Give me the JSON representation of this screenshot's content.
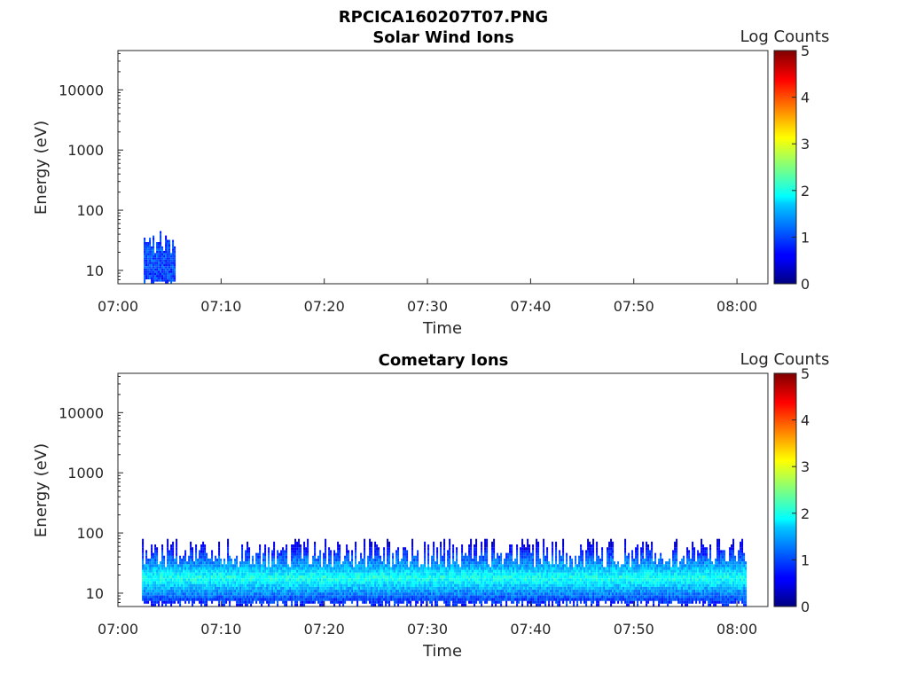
{
  "figure_title": "RPCICA160207T07.PNG",
  "chart_data": [
    {
      "type": "heatmap",
      "title": "Solar Wind Ions",
      "xlabel": "Time",
      "ylabel": "Energy (eV)",
      "xticks": [
        "07:00",
        "07:10",
        "07:20",
        "07:30",
        "07:40",
        "07:50",
        "08:00"
      ],
      "xlim_minutes": [
        0,
        63
      ],
      "yscale": "log",
      "ylim": [
        6,
        45000
      ],
      "yticks": [
        "10",
        "100",
        "1000",
        "10000"
      ],
      "colorbar": {
        "label": "Log Counts",
        "range": [
          0,
          5
        ],
        "ticks": [
          "0",
          "1",
          "2",
          "3",
          "4",
          "5"
        ],
        "colormap": "jet"
      },
      "data_extent": {
        "time_start": "07:02:30",
        "time_end": "07:05:30",
        "energy_min": 6,
        "energy_max": 45
      },
      "peak_log_counts": 1.3
    },
    {
      "type": "heatmap",
      "title": "Cometary Ions",
      "xlabel": "Time",
      "ylabel": "Energy (eV)",
      "xticks": [
        "07:00",
        "07:10",
        "07:20",
        "07:30",
        "07:40",
        "07:50",
        "08:00"
      ],
      "xlim_minutes": [
        0,
        63
      ],
      "yscale": "log",
      "ylim": [
        6,
        45000
      ],
      "yticks": [
        "10",
        "100",
        "1000",
        "10000"
      ],
      "colorbar": {
        "label": "Log Counts",
        "range": [
          0,
          5
        ],
        "ticks": [
          "0",
          "1",
          "2",
          "3",
          "4",
          "5"
        ],
        "colormap": "jet"
      },
      "data_extent": {
        "time_start": "07:02:20",
        "time_end": "08:00:50",
        "energy_min": 6,
        "energy_max": 80
      },
      "peak_energy": 18,
      "peak_log_counts": 2.0
    }
  ]
}
